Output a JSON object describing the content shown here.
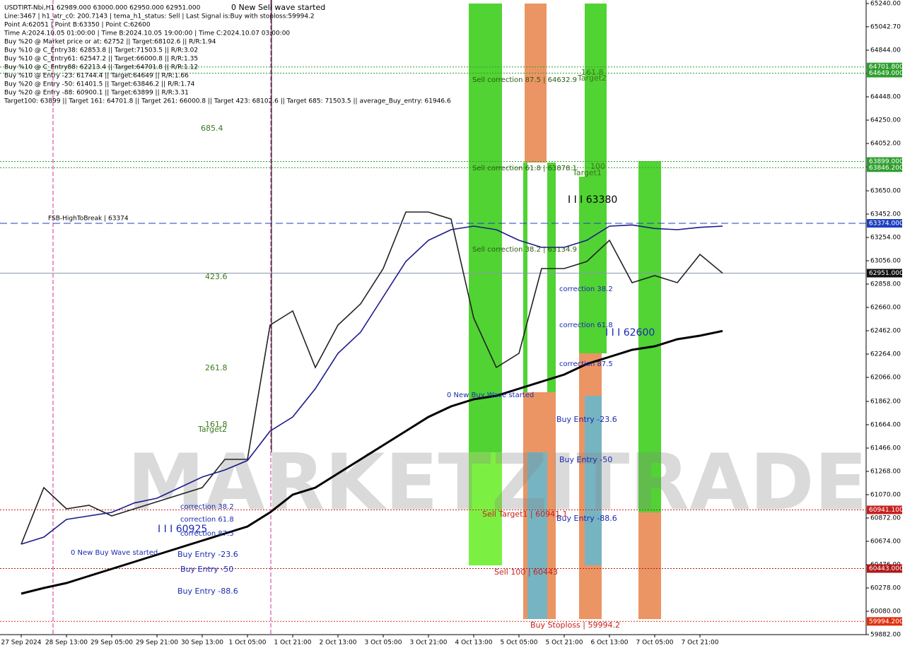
{
  "chart_data": {
    "type": "line",
    "info_lines": [
      "USDTIRT-Nbi,H1  62989.000 63000.000 62950.000 62951.000",
      "Line:3467 | h1_atr_c0: 200.7143 | tema_h1_status: Sell | Last Signal is:Buy with stoploss:59994.2",
      "Point A:62051 | Point B:63350 | Point C:62600",
      "Time A:2024.10.05 01:00:00 | Time B:2024.10.05 19:00:00 | Time C:2024.10.07 03:00:00",
      "Buy %20 @ Market price or at: 62752 || Target:68102.6 || R/R:1.94",
      "Buy %10 @ C_Entry38: 62853.8 || Target:71503.5 || R/R:3.02",
      "Buy %10 @ C_Entry61: 62547.2 || Target:66000.8 || R/R:1.35",
      "Buy %10 @ C_Entry88: 62213.4 || Target:64701.8 || R/R:1.12",
      "Buy %10 @ Entry -23: 61744.4 || Target:64649 || R/R:1.66",
      "Buy %20 @ Entry -50: 61401.5 || Target:63846.2 || R/R:1.74",
      "Buy %20 @ Entry -88: 60900.1 || Target:63899 || R/R:3.31",
      "Target100: 63899 || Target 161: 64701.8 || Target 261: 66000.8 || Target 423: 68102.6 || Target 685: 71503.5 || average_Buy_entry: 61946.6"
    ],
    "watermark": "MARKETZITRADE",
    "annotations": [
      "0 New Sell wave started",
      "685.4",
      "423.6",
      "261.8",
      "161.8",
      "Target2",
      "FSB-HighToBreak | 63374",
      "Sell correction 87.5 | 64632.9",
      "161.8",
      "Target2",
      "Sell correction 61.8 | 63878.1",
      "100",
      "Target1",
      "Sell correction 38.2 | 63134.9",
      "I I I 63380",
      "I I I 62600",
      "correction 38.2",
      "correction 61.8",
      "correction 87.5",
      "0 New Buy Wave started",
      "Buy Entry -23.6",
      "Buy Entry -50",
      "Buy Entry -88.6",
      "Sell Target1 | 60941.1",
      "Sell 100 | 60443",
      "Buy Stoploss | 59994.2",
      "I I I 60925",
      "correction 38.2",
      "correction 61.8",
      "correction 87.5",
      "0 New Buy Wave started",
      "Buy Entry -23.6",
      "Buy Entry -50",
      "Buy Entry -88.6"
    ],
    "categories": [
      "27 Sep 2024",
      null,
      "28 Sep 13:00",
      null,
      "29 Sep 05:00",
      null,
      "29 Sep 21:00",
      null,
      "30 Sep 13:00",
      null,
      "1 Oct 05:00",
      null,
      "1 Oct 21:00",
      null,
      "2 Oct 13:00",
      null,
      "3 Oct 05:00",
      null,
      "3 Oct 21:00",
      null,
      "4 Oct 13:00",
      null,
      "5 Oct 05:00",
      null,
      "5 Oct 21:00",
      null,
      "6 Oct 13:00",
      null,
      "7 Oct 05:00",
      null,
      "7 Oct 21:00",
      null
    ],
    "series": [
      {
        "color": "#222222",
        "values": [
          60650,
          61130,
          60950,
          60980,
          60890,
          60950,
          61010,
          61070,
          61130,
          61370,
          61370,
          62510,
          62630,
          62150,
          62510,
          62690,
          62990,
          63470,
          63470,
          63410,
          62570,
          62150,
          62270,
          62990,
          62990,
          63050,
          63230,
          62870,
          62930,
          62870,
          63110,
          62951
        ]
      },
      {
        "color": "#000000",
        "values": [
          60230,
          60278,
          60320,
          60380,
          60440,
          60500,
          60560,
          60620,
          60680,
          60740,
          60800,
          60920,
          61070,
          61130,
          61250,
          61370,
          61490,
          61610,
          61730,
          61820,
          61880,
          61910,
          61970,
          62030,
          62090,
          62180,
          62240,
          62300,
          62330,
          62390,
          62420,
          62460
        ]
      },
      {
        "color": "#1a1a8c",
        "values": [
          60650,
          60710,
          60860,
          60890,
          60920,
          61000,
          61040,
          61130,
          61220,
          61280,
          61360,
          61610,
          61730,
          61970,
          62270,
          62450,
          62750,
          63050,
          63230,
          63320,
          63350,
          63320,
          63230,
          63170,
          63170,
          63230,
          63350,
          63360,
          63330,
          63320,
          63340,
          63350
        ]
      }
    ],
    "levels": [
      {
        "value": 64701.8,
        "label": "64701.800",
        "color": "#2e9e2e"
      },
      {
        "value": 64649,
        "label": "64649.000",
        "color": "#2e9e2e"
      },
      {
        "value": 63899,
        "label": "63899.000",
        "color": "#2e9e2e"
      },
      {
        "value": 63846.2,
        "label": "63846.200",
        "color": "#2e9e2e"
      },
      {
        "value": 63374,
        "label": "63374.000",
        "color": "#1f3fbf"
      },
      {
        "value": 62951,
        "label": "62951.000",
        "color": "#111111"
      },
      {
        "value": 60941.1,
        "label": "60941.100",
        "color": "#c82020"
      },
      {
        "value": 60443,
        "label": "60443.000",
        "color": "#b01818"
      },
      {
        "value": 59994.2,
        "label": "59994.200",
        "color": "#e03010"
      }
    ],
    "ylim": [
      59882,
      65240
    ],
    "yticks": [
      {
        "value": 65240,
        "label": "65240.00"
      },
      {
        "value": 65042.7,
        "label": "65042.70"
      },
      {
        "value": 64844,
        "label": "64844.00"
      },
      {
        "value": 64646,
        "label": "64646.00"
      },
      {
        "value": 64448,
        "label": "64448.00"
      },
      {
        "value": 64250,
        "label": "64250.00"
      },
      {
        "value": 64052,
        "label": "64052.00"
      },
      {
        "value": 63854,
        "label": "63854.00"
      },
      {
        "value": 63650,
        "label": "63650.00"
      },
      {
        "value": 63452,
        "label": "63452.00"
      },
      {
        "value": 63254,
        "label": "63254.00"
      },
      {
        "value": 63056,
        "label": "63056.00"
      },
      {
        "value": 62858,
        "label": "62858.00"
      },
      {
        "value": 62660,
        "label": "62660.00"
      },
      {
        "value": 62462,
        "label": "62462.00"
      },
      {
        "value": 62264,
        "label": "62264.00"
      },
      {
        "value": 62066,
        "label": "62066.00"
      },
      {
        "value": 61862,
        "label": "61862.00"
      },
      {
        "value": 61664,
        "label": "61664.00"
      },
      {
        "value": 61466,
        "label": "61466.00"
      },
      {
        "value": 61268,
        "label": "61268.00"
      },
      {
        "value": 61070,
        "label": "61070.00"
      },
      {
        "value": 60872,
        "label": "60872.00"
      },
      {
        "value": 60674,
        "label": "60674.00"
      },
      {
        "value": 60476,
        "label": "60476.00"
      },
      {
        "value": 60278,
        "label": "60278.00"
      },
      {
        "value": 60080,
        "label": "60080.00"
      },
      {
        "value": 59882,
        "label": "59882.00"
      }
    ]
  }
}
